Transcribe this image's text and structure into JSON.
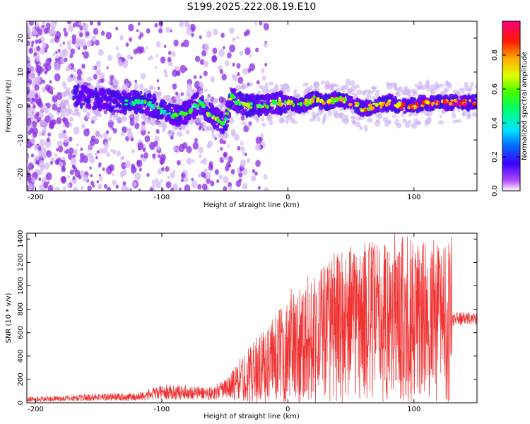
{
  "chart_data": [
    {
      "type": "heatmap",
      "title": "S199.2025.222.08.19.E10",
      "xlabel": "Height of straight line (km)",
      "ylabel": "Frequency (Hz)",
      "xlim": [
        -207,
        150
      ],
      "ylim": [
        -25,
        25
      ],
      "xticks": [
        -200,
        -100,
        0,
        100
      ],
      "yticks": [
        -20,
        -10,
        0,
        10,
        20
      ],
      "colorbar": {
        "label": "Normalized spectral amplitude",
        "range": [
          0,
          1
        ],
        "ticks": [
          0.0,
          0.2,
          0.4,
          0.6,
          0.8
        ]
      },
      "ridge": {
        "x": [
          -165,
          -150,
          -130,
          -115,
          -100,
          -90,
          -80,
          -70,
          -60,
          -50,
          -45,
          -40,
          -30,
          -20,
          -10,
          0,
          10,
          20,
          30,
          40,
          50,
          60,
          70,
          80,
          90,
          100,
          110,
          120,
          130,
          140,
          150
        ],
        "y": [
          3,
          2,
          1,
          1,
          -1,
          -3,
          -2,
          1,
          -3,
          -5,
          3,
          1,
          0,
          0,
          1,
          1,
          0,
          2,
          1,
          2,
          1,
          -1,
          0,
          1,
          0,
          0,
          1,
          1,
          1,
          1,
          1
        ]
      }
    },
    {
      "type": "line",
      "xlabel": "Height of straight line (km)",
      "ylabel": "SNR (10 * v/v)",
      "xlim": [
        -207,
        150
      ],
      "ylim": [
        0,
        1450
      ],
      "xticks": [
        -200,
        -100,
        0,
        100
      ],
      "yticks": [
        0,
        200,
        400,
        600,
        800,
        1000,
        1200,
        1400
      ],
      "series": [
        {
          "name": "SNR",
          "color": "#f03232",
          "envelope_x": [
            -207,
            -180,
            -150,
            -120,
            -100,
            -80,
            -60,
            -45,
            -30,
            -20,
            -10,
            0,
            10,
            20,
            30,
            40,
            50,
            60,
            70,
            80,
            90,
            100,
            110,
            120,
            130,
            140,
            150
          ],
          "envelope_y": [
            30,
            35,
            50,
            50,
            90,
            90,
            80,
            140,
            250,
            300,
            380,
            450,
            520,
            560,
            620,
            650,
            670,
            690,
            700,
            710,
            700,
            690,
            700,
            700,
            720,
            720,
            720
          ]
        }
      ]
    }
  ]
}
